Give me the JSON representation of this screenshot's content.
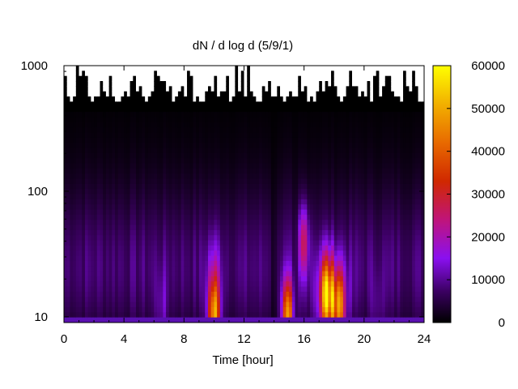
{
  "chart_data": {
    "type": "heatmap",
    "title": "dN / d log d (5/9/1)",
    "xlabel": "Time [hour]",
    "ylabel": "",
    "xlim": [
      0,
      24
    ],
    "ylim": [
      9,
      1000
    ],
    "y_scale": "log",
    "x_ticks": [
      0,
      4,
      8,
      12,
      16,
      20,
      24
    ],
    "x_tick_labels": [
      "0",
      "4",
      "8",
      "12",
      "16",
      "20",
      "24"
    ],
    "y_ticks": [
      10,
      100,
      1000
    ],
    "y_tick_labels": [
      "10",
      "100",
      "1000"
    ],
    "colorbar": {
      "min": 0,
      "max": 60000,
      "ticks": [
        0,
        10000,
        20000,
        30000,
        40000,
        50000,
        60000
      ],
      "tick_labels": [
        "0",
        "10000",
        "20000",
        "30000",
        "40000",
        "50000",
        "60000"
      ],
      "palette": "black-purple-red-orange-yellow"
    },
    "grid": false,
    "legend": "none",
    "features": [
      {
        "time_hour": 10.0,
        "diameter": 10,
        "value": 38000
      },
      {
        "time_hour": 14.9,
        "diameter": 10,
        "value": 36000
      },
      {
        "time_hour": 17.5,
        "diameter": 15,
        "value": 34000
      },
      {
        "time_hour": 18.3,
        "diameter": 12,
        "value": 36000
      },
      {
        "time_hour": 16.0,
        "diameter": 40,
        "value": 18000
      }
    ]
  }
}
